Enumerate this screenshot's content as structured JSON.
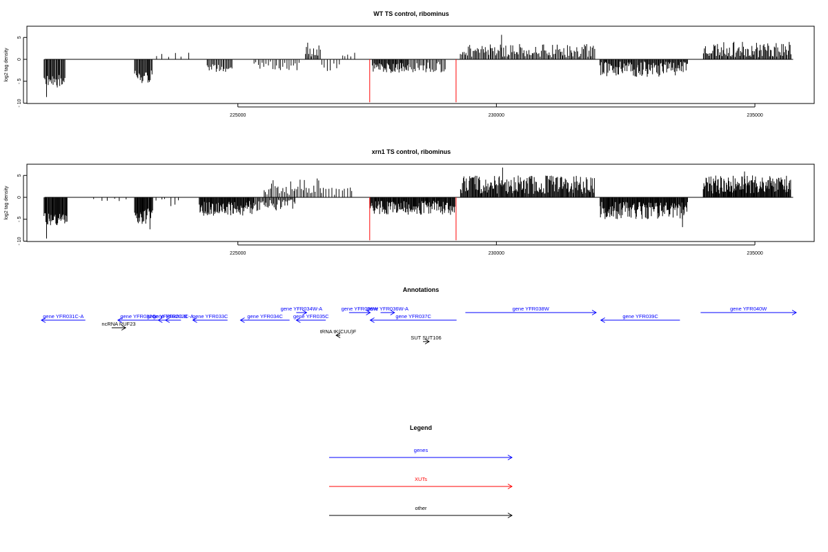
{
  "chart_data": [
    {
      "type": "bar",
      "title": "WT TS control, ribominus",
      "ylabel": "log2 tag density",
      "xlim": [
        221200,
        235800
      ],
      "ylim": [
        -10,
        7.5
      ],
      "yticks": [
        "- 10",
        "- 5",
        "0",
        "5"
      ],
      "xticks": [
        "225000",
        "230000",
        "235000"
      ],
      "grid": false,
      "baseline": [
        221200,
        235800
      ],
      "regions": [
        {
          "start": 221250,
          "end": 221650,
          "strand": -1,
          "amp": [
            3.5,
            6.5
          ],
          "step": 16,
          "seed": 11
        },
        {
          "start": 223000,
          "end": 223350,
          "strand": -1,
          "amp": [
            2.5,
            5.5
          ],
          "step": 16,
          "seed": 12
        },
        {
          "start": 223400,
          "end": 223900,
          "strand": 1,
          "amp": [
            0.5,
            1.5
          ],
          "step": 120,
          "seed": 13
        },
        {
          "start": 224400,
          "end": 224900,
          "strand": -1,
          "amp": [
            0.8,
            3.2
          ],
          "step": 22,
          "seed": 14
        },
        {
          "start": 225300,
          "end": 226200,
          "strand": -1,
          "amp": [
            0.5,
            2.5
          ],
          "step": 40,
          "seed": 15
        },
        {
          "start": 226300,
          "end": 226600,
          "strand": 1,
          "amp": [
            0.5,
            3.5
          ],
          "step": 22,
          "seed": 16
        },
        {
          "start": 226600,
          "end": 227000,
          "strand": -1,
          "amp": [
            0.5,
            3.5
          ],
          "step": 60,
          "seed": 17
        },
        {
          "start": 227000,
          "end": 227250,
          "strand": 1,
          "amp": [
            0.5,
            2
          ],
          "step": 60,
          "seed": 18
        },
        {
          "start": 227600,
          "end": 228300,
          "strand": -1,
          "amp": [
            0.8,
            3.2
          ],
          "step": 15,
          "seed": 19
        },
        {
          "start": 228300,
          "end": 229000,
          "strand": -1,
          "amp": [
            0.5,
            3
          ],
          "step": 25,
          "seed": 20
        },
        {
          "start": 229300,
          "end": 231900,
          "strand": 1,
          "amp": [
            0.5,
            3.5
          ],
          "step": 22,
          "seed": 21
        },
        {
          "start": 232000,
          "end": 233700,
          "strand": -1,
          "amp": [
            0.5,
            4
          ],
          "step": 15,
          "seed": 22
        },
        {
          "start": 234000,
          "end": 235700,
          "strand": 1,
          "amp": [
            0.5,
            4
          ],
          "step": 18,
          "seed": 23
        }
      ],
      "spikes": [
        {
          "x": 221300,
          "y": -8.6
        },
        {
          "x": 230100,
          "y": 5.6
        },
        {
          "x": 224050,
          "y": 1.5
        },
        {
          "x": 226350,
          "y": 3.8
        }
      ],
      "red_lines": [
        {
          "x": 227550,
          "y": -9.8
        },
        {
          "x": 229220,
          "y": -9.8
        }
      ]
    },
    {
      "type": "bar",
      "title": "xrn1 TS control, ribominus",
      "ylabel": "log2 tag density",
      "xlim": [
        221200,
        235800
      ],
      "ylim": [
        -10,
        7.5
      ],
      "yticks": [
        "- 10",
        "- 5",
        "0",
        "5"
      ],
      "xticks": [
        "225000",
        "230000",
        "235000"
      ],
      "grid": false,
      "baseline": [
        221200,
        235800
      ],
      "regions": [
        {
          "start": 221250,
          "end": 221700,
          "strand": -1,
          "amp": [
            3.5,
            6.5
          ],
          "step": 12,
          "seed": 31
        },
        {
          "start": 222200,
          "end": 222800,
          "strand": -1,
          "amp": [
            0.2,
            1
          ],
          "step": 120,
          "seed": 32
        },
        {
          "start": 223000,
          "end": 223350,
          "strand": -1,
          "amp": [
            2.5,
            6.5
          ],
          "step": 12,
          "seed": 33
        },
        {
          "start": 223400,
          "end": 223900,
          "strand": -1,
          "amp": [
            0.3,
            2
          ],
          "step": 90,
          "seed": 34
        },
        {
          "start": 224250,
          "end": 225300,
          "strand": -1,
          "amp": [
            0.8,
            4.2
          ],
          "step": 12,
          "seed": 35
        },
        {
          "start": 225300,
          "end": 226100,
          "strand": -1,
          "amp": [
            0.5,
            3.5
          ],
          "step": 20,
          "seed": 36
        },
        {
          "start": 225500,
          "end": 226600,
          "strand": 1,
          "amp": [
            0.5,
            5
          ],
          "step": 30,
          "seed": 37
        },
        {
          "start": 226600,
          "end": 227200,
          "strand": 1,
          "amp": [
            0.5,
            2.5
          ],
          "step": 50,
          "seed": 38
        },
        {
          "start": 227550,
          "end": 229200,
          "strand": -1,
          "amp": [
            0.8,
            4
          ],
          "step": 12,
          "seed": 39
        },
        {
          "start": 229300,
          "end": 231900,
          "strand": 1,
          "amp": [
            0.8,
            5
          ],
          "step": 14,
          "seed": 40
        },
        {
          "start": 232000,
          "end": 233700,
          "strand": -1,
          "amp": [
            1,
            5
          ],
          "step": 12,
          "seed": 41
        },
        {
          "start": 234000,
          "end": 235700,
          "strand": 1,
          "amp": [
            0.8,
            5
          ],
          "step": 12,
          "seed": 42
        }
      ],
      "spikes": [
        {
          "x": 221300,
          "y": -9.4
        },
        {
          "x": 230120,
          "y": 6.8
        },
        {
          "x": 223300,
          "y": -7.3
        },
        {
          "x": 233600,
          "y": -6.8
        },
        {
          "x": 234800,
          "y": 5.9
        }
      ],
      "red_lines": [
        {
          "x": 227550,
          "y": -9.8
        },
        {
          "x": 229220,
          "y": -9.8
        }
      ]
    }
  ],
  "annotations": {
    "title": "Annotations",
    "colors": {
      "gene": "#0000ff",
      "other": "#000000",
      "xut": "#ff0000"
    },
    "features": [
      {
        "label": "gene YFR031C-A",
        "kind": "gene",
        "start": 221200,
        "end": 222050,
        "dir": "left",
        "row": 2
      },
      {
        "label": "ncRNA RUF23",
        "kind": "other",
        "start": 222560,
        "end": 222830,
        "dir": "right",
        "row": 3
      },
      {
        "label": "gene YFR032C",
        "kind": "gene",
        "start": 222680,
        "end": 223460,
        "dir": "left",
        "row": 2
      },
      {
        "label": "gene YFR032C-B",
        "kind": "gene",
        "start": 223460,
        "end": 223800,
        "dir": "left",
        "row": 2
      },
      {
        "label": "gene YFR032C-A",
        "kind": "gene",
        "start": 223600,
        "end": 223900,
        "dir": "left",
        "row": 2
      },
      {
        "label": "gene YFR033C",
        "kind": "gene",
        "start": 224130,
        "end": 224800,
        "dir": "left",
        "row": 2
      },
      {
        "label": "gene YFR034C",
        "kind": "gene",
        "start": 225050,
        "end": 226000,
        "dir": "left",
        "row": 2
      },
      {
        "label": "gene YFR034W-A",
        "kind": "gene",
        "start": 226130,
        "end": 226330,
        "dir": "right",
        "row": 1
      },
      {
        "label": "gene YFR035C",
        "kind": "gene",
        "start": 226130,
        "end": 226700,
        "dir": "left",
        "row": 2
      },
      {
        "label": "gene YFR036W",
        "kind": "gene",
        "start": 227150,
        "end": 227560,
        "dir": "right",
        "row": 1
      },
      {
        "label": "gene YFR036W-A",
        "kind": "gene",
        "start": 227760,
        "end": 228030,
        "dir": "right",
        "row": 1
      },
      {
        "label": "gene YFR037C",
        "kind": "gene",
        "start": 227560,
        "end": 229230,
        "dir": "left",
        "row": 2
      },
      {
        "label": "tRNA tK(CUU)F",
        "kind": "other",
        "start": 226900,
        "end": 226980,
        "dir": "left",
        "row": 4
      },
      {
        "label": "SUT SUT106",
        "kind": "other",
        "start": 228580,
        "end": 228700,
        "dir": "right",
        "row": 5
      },
      {
        "label": "gene YFR038W",
        "kind": "gene",
        "start": 229400,
        "end": 231930,
        "dir": "right",
        "row": 1
      },
      {
        "label": "gene YFR039C",
        "kind": "gene",
        "start": 232020,
        "end": 233550,
        "dir": "left",
        "row": 2
      },
      {
        "label": "gene YFR040W",
        "kind": "gene",
        "start": 233950,
        "end": 235800,
        "dir": "right",
        "row": 1
      }
    ]
  },
  "legend": {
    "title": "Legend",
    "items": [
      {
        "label": "genes",
        "color": "#0000ff"
      },
      {
        "label": "XUTs",
        "color": "#ff0000"
      },
      {
        "label": "other",
        "color": "#000000"
      }
    ]
  }
}
